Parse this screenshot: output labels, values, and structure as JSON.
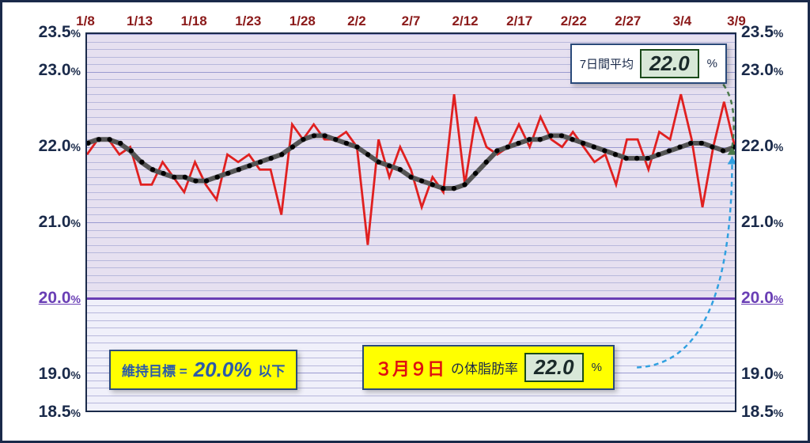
{
  "chart": {
    "type": "line",
    "ylim": [
      18.5,
      23.5
    ],
    "xticks": [
      "1/8",
      "1/13",
      "1/18",
      "1/23",
      "1/28",
      "2/2",
      "2/7",
      "2/12",
      "2/17",
      "2/22",
      "2/27",
      "3/4",
      "3/9"
    ],
    "yticks_major": [
      18.5,
      19.0,
      20.0,
      21.0,
      22.0,
      23.0,
      23.5
    ],
    "target_line": 20.0,
    "minor_step": 0.1,
    "colors": {
      "frame": "#1a2a4a",
      "plot_bg": "#e6e0f0",
      "target_zone_bg": "#f0f0fa",
      "grid_major": "#9a9ad0",
      "grid_minor": "#b8b8dc",
      "target_line": "#6a3fb5",
      "daily_line": "#e02020",
      "avg_line": "#555555",
      "avg_marker_fill": "#000000",
      "avg_marker_stroke": "#000000",
      "arrow_avg": "#4a7a4a",
      "arrow_daily": "#30a0e0"
    },
    "line_widths": {
      "daily": 2,
      "avg": 5
    },
    "marker_radius": 3.2,
    "daily_values": [
      21.9,
      22.1,
      22.1,
      21.9,
      22.0,
      21.5,
      21.5,
      21.8,
      21.6,
      21.4,
      21.8,
      21.5,
      21.3,
      21.9,
      21.8,
      21.9,
      21.7,
      21.7,
      21.1,
      22.3,
      22.1,
      22.3,
      22.1,
      22.1,
      22.2,
      22.0,
      20.7,
      22.1,
      21.6,
      22.0,
      21.7,
      21.2,
      21.6,
      21.4,
      22.7,
      21.5,
      22.4,
      22.0,
      21.9,
      22.0,
      22.3,
      22.0,
      22.4,
      22.1,
      22.0,
      22.2,
      22.0,
      21.8,
      21.9,
      21.5,
      22.1,
      22.1,
      21.7,
      22.2,
      22.1,
      22.7,
      22.1,
      21.2,
      22.0,
      22.6,
      22.0
    ],
    "avg_values": [
      22.05,
      22.1,
      22.1,
      22.05,
      21.95,
      21.8,
      21.7,
      21.65,
      21.6,
      21.6,
      21.55,
      21.55,
      21.6,
      21.65,
      21.7,
      21.75,
      21.8,
      21.85,
      21.9,
      22.0,
      22.1,
      22.15,
      22.15,
      22.1,
      22.05,
      22.0,
      21.9,
      21.8,
      21.75,
      21.7,
      21.6,
      21.55,
      21.5,
      21.45,
      21.45,
      21.5,
      21.65,
      21.8,
      21.95,
      22.0,
      22.05,
      22.1,
      22.1,
      22.15,
      22.15,
      22.1,
      22.05,
      22.0,
      21.95,
      21.9,
      21.85,
      21.85,
      21.85,
      21.9,
      21.95,
      22.0,
      22.05,
      22.05,
      22.0,
      21.95,
      22.0
    ]
  },
  "boxes": {
    "seven_day_avg": {
      "label": "7日間平均",
      "value": "22.0",
      "pct": "%"
    },
    "target": {
      "label": "維持目標 =",
      "value": "20.0%",
      "suffix": "以下"
    },
    "daily": {
      "date": "３月９日",
      "label": "の体脂肪率",
      "value": "22.0",
      "pct": "%"
    }
  },
  "ylabels": {
    "18.5": {
      "major": "18.5",
      "minor": "%"
    },
    "19.0": {
      "major": "19.0",
      "minor": "%"
    },
    "20.0": {
      "major": "20.0",
      "minor": "%"
    },
    "21.0": {
      "major": "21.0",
      "minor": "%"
    },
    "22.0": {
      "major": "22.0",
      "minor": "%"
    },
    "23.0": {
      "major": "23.0",
      "minor": "%"
    },
    "23.5": {
      "major": "23.5",
      "minor": "%"
    }
  }
}
